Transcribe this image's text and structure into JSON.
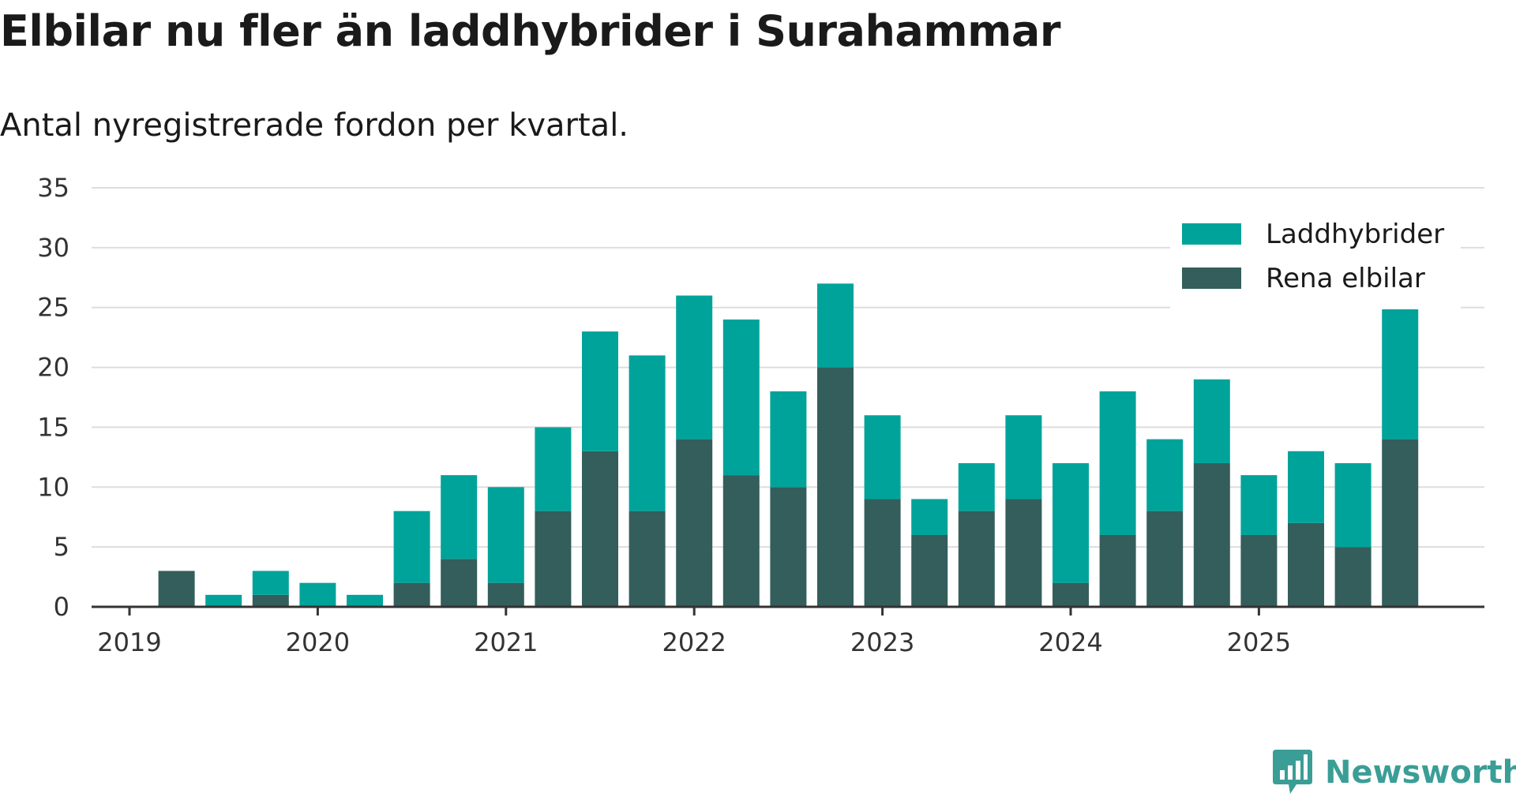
{
  "title": "Elbilar nu fler än laddhybrider i Surahammar",
  "subtitle": "Antal nyregistrerade fordon per kvartal.",
  "brand": {
    "name": "Newsworthy",
    "icon": "newsworthy-logo-icon"
  },
  "colors": {
    "rena": "#335e5b",
    "ladd": "#00a39a",
    "grid": "#dddddd",
    "axis": "#333333"
  },
  "chart_data": {
    "type": "bar",
    "stacked": true,
    "title": "Elbilar nu fler än laddhybrider i Surahammar",
    "subtitle": "Antal nyregistrerade fordon per kvartal.",
    "categories": [
      "2019-Q2",
      "2019-Q3",
      "2019-Q4",
      "2020-Q1",
      "2020-Q2",
      "2020-Q3",
      "2020-Q4",
      "2021-Q1",
      "2021-Q2",
      "2021-Q3",
      "2021-Q4",
      "2022-Q1",
      "2022-Q2",
      "2022-Q3",
      "2022-Q4",
      "2023-Q1",
      "2023-Q2",
      "2023-Q3",
      "2023-Q4",
      "2024-Q1",
      "2024-Q2",
      "2024-Q3",
      "2024-Q4",
      "2025-Q1",
      "2025-Q2",
      "2025-Q3",
      "2025-Q4"
    ],
    "series": [
      {
        "name": "Rena elbilar",
        "color": "#335e5b",
        "values": [
          3,
          0,
          1,
          0,
          0,
          2,
          4,
          2,
          8,
          13,
          8,
          14,
          11,
          10,
          20,
          9,
          6,
          8,
          9,
          2,
          6,
          8,
          12,
          6,
          7,
          5,
          14
        ]
      },
      {
        "name": "Laddhybrider",
        "color": "#00a39a",
        "values": [
          0,
          1,
          2,
          2,
          1,
          6,
          7,
          8,
          7,
          10,
          13,
          12,
          13,
          8,
          7,
          7,
          3,
          4,
          7,
          10,
          12,
          6,
          7,
          5,
          6,
          7,
          11
        ]
      }
    ],
    "x_ticks": [
      "2019",
      "2020",
      "2021",
      "2022",
      "2023",
      "2024",
      "2025"
    ],
    "y_ticks": [
      0,
      5,
      10,
      15,
      20,
      25,
      30,
      35
    ],
    "ylim": [
      0,
      35
    ],
    "grid": true,
    "legend": {
      "position": "top-right",
      "entries": [
        "Laddhybrider",
        "Rena elbilar"
      ]
    }
  }
}
